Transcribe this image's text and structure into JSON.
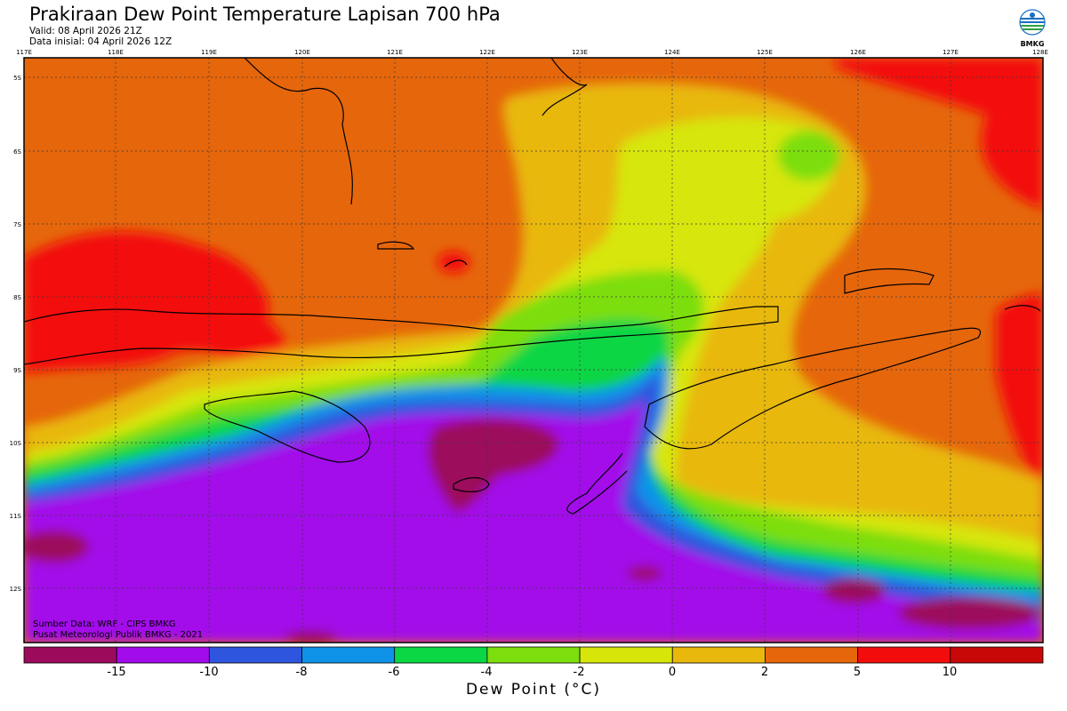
{
  "header": {
    "title": "Prakiraan Dew Point Temperature Lapisan 700 hPa",
    "valid": "Valid: 08 April 2026 21Z",
    "initial": "Data inisial: 04 April 2026 12Z"
  },
  "logo": {
    "label": "BMKG"
  },
  "axes": {
    "lon_labels": [
      "117E",
      "118E",
      "119E",
      "120E",
      "121E",
      "122E",
      "123E",
      "124E",
      "125E",
      "126E",
      "127E",
      "128E"
    ],
    "lat_labels": [
      "5S",
      "6S",
      "7S",
      "8S",
      "9S",
      "10S",
      "11S",
      "12S"
    ]
  },
  "footer": {
    "source": "Sumber Data: WRF - CIPS BMKG",
    "publisher": "Pusat Meteorologi Publik BMKG - 2021"
  },
  "colorbar": {
    "ticks": [
      "-15",
      "-10",
      "-8",
      "-6",
      "-4",
      "-2",
      "0",
      "2",
      "5",
      "10"
    ],
    "colors": [
      "#9c0a5c",
      "#a20bea",
      "#2e55dd",
      "#0f93e8",
      "#0bd644",
      "#7dde0e",
      "#d7e608",
      "#e8b80c",
      "#e6660b",
      "#f30c0c",
      "#c80808"
    ],
    "unit_label": "Dew Point (°C)"
  }
}
